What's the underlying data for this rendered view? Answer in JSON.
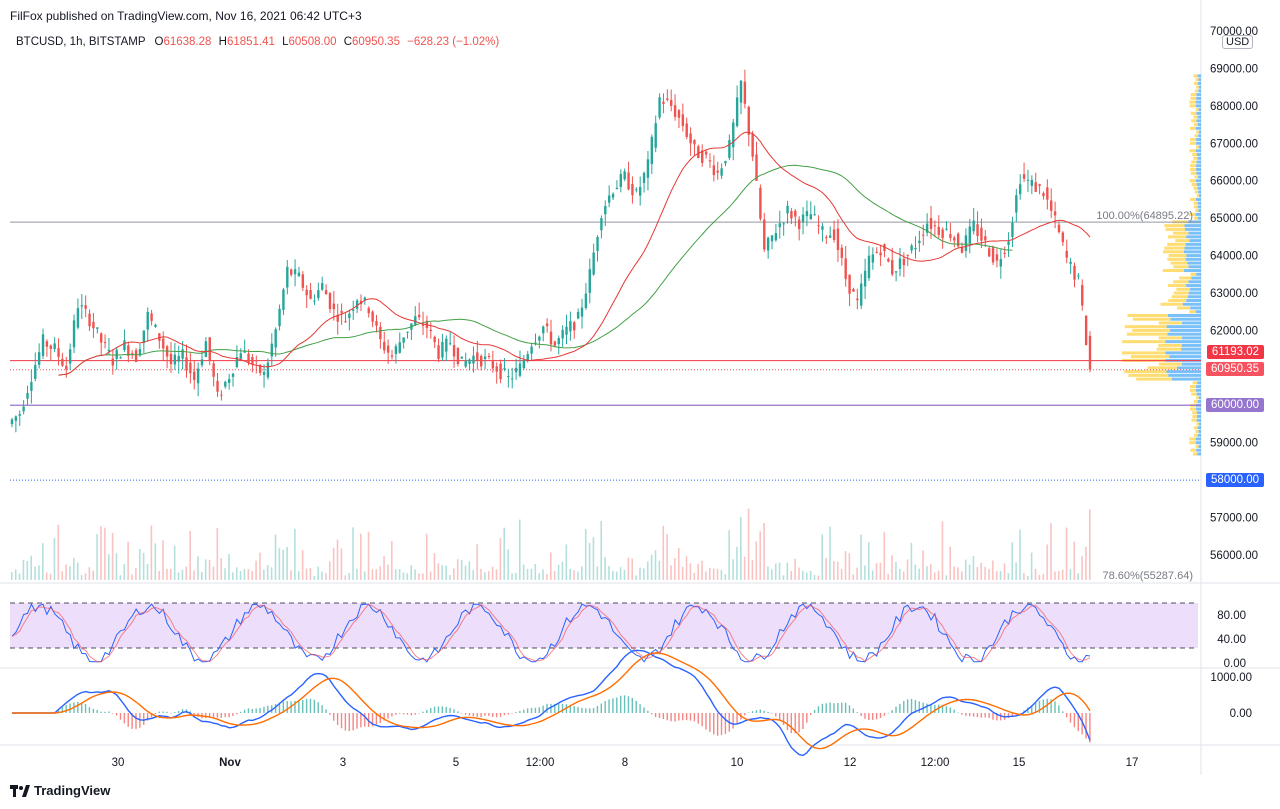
{
  "header": {
    "published": "FilFox published on TradingView.com, Nov 16, 2021 06:42 UTC+3"
  },
  "legend": {
    "symbol": "BTCUSD, 1h, BITSTAMP",
    "open_label": "O",
    "open": "61638.28",
    "high_label": "H",
    "high": "61851.41",
    "low_label": "L",
    "low": "60508.00",
    "close_label": "C",
    "close": "60950.35",
    "change": "−628.23 (−1.02%)"
  },
  "currency": "USD",
  "price_tags": {
    "t1": "61193.02",
    "t2": "60950.35",
    "t3": "60000.00",
    "t4": "58000.00"
  },
  "fib": {
    "top": "100.00%(64895.22)",
    "bottom": "78.60%(55287.64)"
  },
  "brand": "TradingView",
  "chart_data": [
    {
      "type": "candlestick",
      "symbol": "BTCUSD",
      "interval": "1h",
      "exchange": "BITSTAMP",
      "y_ticks": [
        "56000.00",
        "57000.00",
        "58000.00",
        "59000.00",
        "60000.00",
        "61000.00",
        "62000.00",
        "63000.00",
        "64000.00",
        "65000.00",
        "66000.00",
        "67000.00",
        "68000.00",
        "69000.00",
        "70000.00"
      ],
      "x_ticks": [
        "30",
        "Nov",
        "3",
        "5",
        "12:00",
        "8",
        "10",
        "12",
        "12:00",
        "15",
        "17"
      ],
      "ylim": [
        55000,
        70000
      ],
      "approx_closes": [
        59800,
        60800,
        61700,
        61500,
        61000,
        62700,
        62300,
        61700,
        61200,
        61600,
        61300,
        62400,
        61800,
        61100,
        61300,
        60700,
        61700,
        60200,
        60800,
        61500,
        61100,
        60800,
        62000,
        63600,
        63400,
        62800,
        63200,
        62500,
        62300,
        62900,
        62600,
        61700,
        61300,
        61900,
        62300,
        62100,
        61400,
        61700,
        61100,
        61300,
        61200,
        61000,
        60700,
        61000,
        61700,
        62100,
        61600,
        62000,
        62300,
        63500,
        65200,
        65800,
        66100,
        65600,
        66400,
        68200,
        68000,
        67500,
        66800,
        66600,
        66200,
        66900,
        68600,
        66700,
        64100,
        64700,
        65200,
        64900,
        65100,
        64600,
        64600,
        63400,
        62700,
        63900,
        64200,
        63600,
        63900,
        64300,
        64900,
        64700,
        64600,
        64200,
        64800,
        64300,
        63800,
        64500,
        66100,
        65900,
        65700,
        64900,
        63900,
        63300,
        60950
      ],
      "sma_fast_name": "",
      "annotations": [
        "100.00%(64895.22)",
        "78.60%(55287.64)"
      ],
      "horizontal_levels": [
        64895.22,
        61193.02,
        60950.35,
        60000.0,
        58000.0
      ]
    },
    {
      "type": "line",
      "panel": "stochastic",
      "y_ticks": [
        "0.00",
        "40.00",
        "80.00"
      ],
      "band": [
        20,
        80
      ]
    },
    {
      "type": "line",
      "panel": "macd",
      "y_ticks": [
        "0.00",
        "1000.00"
      ]
    }
  ],
  "colors": {
    "up": "#26a69a",
    "down": "#ef5350",
    "sma_green": "#43a047",
    "sma_red": "#e53935",
    "tag_red": "#f23645",
    "tag_orange": "#f7525f",
    "tag_purple": "#9575cd",
    "tag_blue": "#2962ff",
    "stoch_band": "#e8d7fb",
    "macd_blue": "#2962ff",
    "macd_orange": "#ff6d00"
  }
}
